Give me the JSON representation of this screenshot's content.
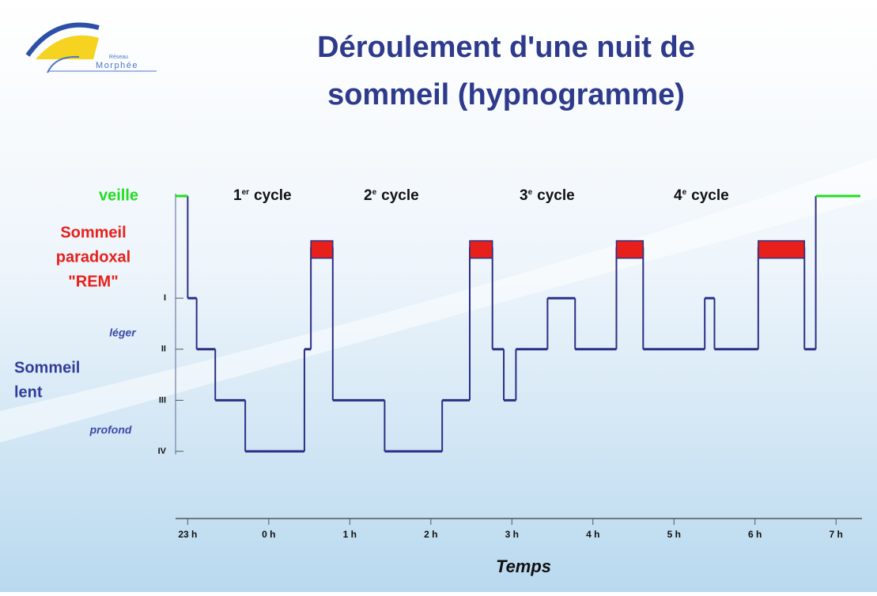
{
  "chart_data": {
    "type": "step",
    "title_lines": [
      "Déroulement d'une nuit de",
      "sommeil  (hypnogramme)"
    ],
    "logo": {
      "top": "Réseau",
      "name": "Morphée"
    },
    "stage_labels": {
      "wake": "veille",
      "rem": [
        "Sommeil",
        "paradoxal",
        "\"REM\""
      ],
      "light": "léger",
      "slow": [
        "Sommeil",
        "lent"
      ],
      "deep": "profond"
    },
    "cycles": [
      {
        "number": "1",
        "suffix": "er",
        "label": "cycle"
      },
      {
        "number": "2",
        "suffix": "e",
        "label": "cycle"
      },
      {
        "number": "3",
        "suffix": "e",
        "label": "cycle"
      },
      {
        "number": "4",
        "suffix": "e",
        "label": "cycle"
      }
    ],
    "x_label": "Temps",
    "x": [
      -0.15,
      0,
      0.11,
      0.34,
      0.71,
      1.44,
      1.52,
      1.79,
      2.43,
      3.14,
      3.48,
      3.76,
      3.9,
      4.05,
      4.44,
      4.78,
      5.29,
      5.62,
      6.38,
      6.5,
      7.04,
      7.61,
      7.75,
      8.3
    ],
    "values": [
      5,
      3,
      2,
      1,
      0,
      2,
      4,
      1,
      0,
      1,
      4,
      2,
      1,
      2,
      3,
      2,
      4,
      2,
      3,
      2,
      4,
      2,
      5,
      5
    ],
    "stage_colors": [
      "#2b2f86",
      "#2b2f86",
      "#2b2f86",
      "#2b2f86",
      "#e8201c",
      "#22dd22"
    ],
    "xlim": [
      -0.15,
      8.32
    ],
    "xticks": [
      {
        "value": 0,
        "label": "23 h"
      },
      {
        "value": 1,
        "label": "0 h"
      },
      {
        "value": 2,
        "label": "1 h"
      },
      {
        "value": 3,
        "label": "2 h"
      },
      {
        "value": 4,
        "label": "3 h"
      },
      {
        "value": 5,
        "label": "4 h"
      },
      {
        "value": 6,
        "label": "5 h"
      },
      {
        "value": 7,
        "label": "6 h"
      },
      {
        "value": 8,
        "label": "7 h"
      }
    ],
    "ylim": [
      0,
      5
    ],
    "yticks": [
      {
        "value": 3,
        "label": "I"
      },
      {
        "value": 2,
        "label": "II"
      },
      {
        "value": 1,
        "label": "III"
      },
      {
        "value": 0,
        "label": "IV"
      }
    ]
  }
}
